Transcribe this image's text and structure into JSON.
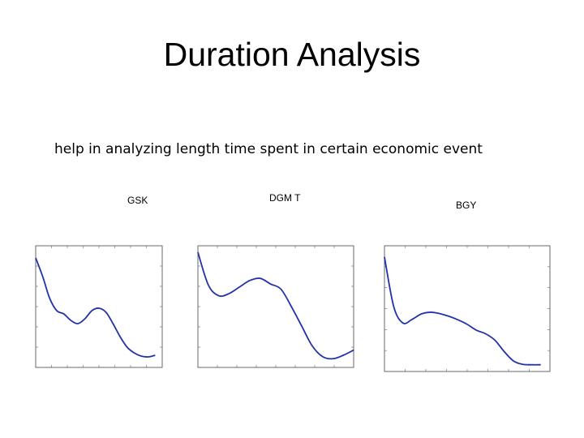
{
  "slide": {
    "title": "Duration Analysis",
    "subtitle": "help in analyzing length time spent in certain economic event"
  },
  "labels": {
    "gsk": "GSK",
    "dgmt": "DGM T",
    "bgy": "BGY"
  },
  "colors": {
    "curve": "#2233aa",
    "frame": "#444444"
  },
  "chart_data": [
    {
      "type": "line",
      "series": [
        {
          "values": [
            [
              0,
              1.55
            ],
            [
              1,
              1.32
            ],
            [
              2,
              1.05
            ],
            [
              3,
              0.9
            ],
            [
              4,
              0.86
            ],
            [
              5,
              0.78
            ],
            [
              6,
              0.74
            ],
            [
              7,
              0.8
            ],
            [
              8,
              0.9
            ],
            [
              9,
              0.93
            ],
            [
              10,
              0.88
            ],
            [
              11,
              0.74
            ],
            [
              12,
              0.58
            ],
            [
              13,
              0.45
            ],
            [
              14,
              0.38
            ],
            [
              15,
              0.34
            ],
            [
              16,
              0.33
            ],
            [
              17,
              0.35
            ]
          ]
        }
      ],
      "xlim": [
        0,
        18
      ],
      "ylim": [
        0.2,
        1.7
      ]
    },
    {
      "type": "line",
      "series": [
        {
          "values": [
            [
              0,
              3.45
            ],
            [
              1,
              2.7
            ],
            [
              2,
              2.45
            ],
            [
              3,
              2.5
            ],
            [
              4,
              2.65
            ],
            [
              5,
              2.8
            ],
            [
              6,
              2.85
            ],
            [
              7,
              2.72
            ],
            [
              8,
              2.6
            ],
            [
              9,
              2.2
            ],
            [
              10,
              1.75
            ],
            [
              11,
              1.3
            ],
            [
              12,
              1.05
            ],
            [
              13,
              1.0
            ],
            [
              14,
              1.08
            ],
            [
              15,
              1.2
            ]
          ]
        }
      ],
      "xlim": [
        0,
        15
      ],
      "ylim": [
        0.8,
        3.6
      ]
    },
    {
      "type": "line",
      "series": [
        {
          "values": [
            [
              0,
              3.45
            ],
            [
              1,
              2.35
            ],
            [
              2,
              1.98
            ],
            [
              3,
              2.06
            ],
            [
              4,
              2.18
            ],
            [
              5,
              2.22
            ],
            [
              6,
              2.19
            ],
            [
              7,
              2.13
            ],
            [
              8,
              2.05
            ],
            [
              9,
              1.95
            ],
            [
              10,
              1.82
            ],
            [
              11,
              1.74
            ],
            [
              12,
              1.6
            ],
            [
              13,
              1.35
            ],
            [
              14,
              1.14
            ],
            [
              15,
              1.06
            ],
            [
              16,
              1.05
            ],
            [
              17,
              1.05
            ]
          ]
        }
      ],
      "xlim": [
        0,
        18
      ],
      "ylim": [
        0.9,
        3.7
      ]
    }
  ]
}
